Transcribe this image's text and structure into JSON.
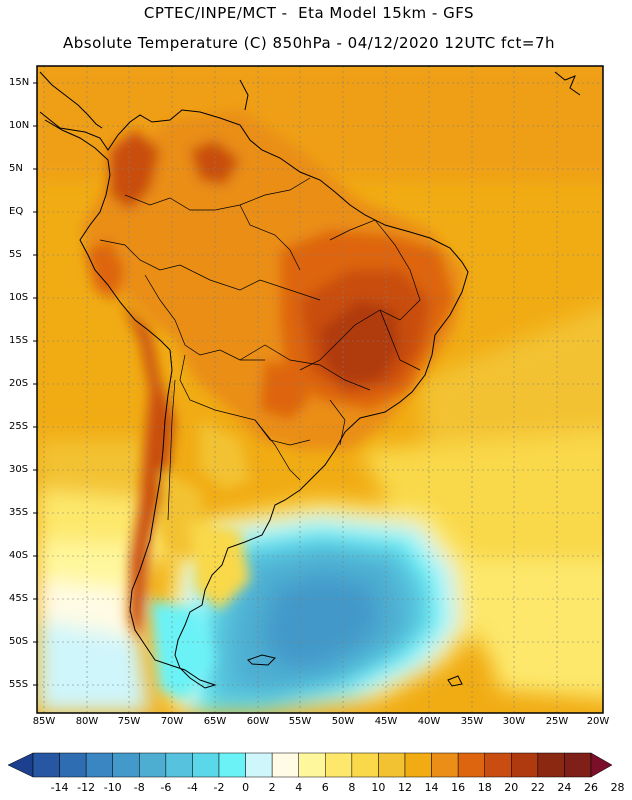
{
  "header": {
    "line1": "CPTEC/INPE/MCT -  Eta Model 15km - GFS",
    "line2": "Absolute Temperature (C) 850hPa - 04/12/2020 12UTC fct=7h"
  },
  "axes": {
    "lat_labels": [
      "15N",
      "10N",
      "5N",
      "EQ",
      "5S",
      "10S",
      "15S",
      "20S",
      "25S",
      "30S",
      "35S",
      "40S",
      "45S",
      "50S",
      "55S"
    ],
    "lon_labels": [
      "85W",
      "80W",
      "75W",
      "70W",
      "65W",
      "60W",
      "55W",
      "50W",
      "45W",
      "40W",
      "35W",
      "30W",
      "25W",
      "20W"
    ]
  },
  "colorbar": {
    "labels": [
      "-14",
      "-12",
      "-10",
      "-8",
      "-6",
      "-4",
      "-2",
      "0",
      "2",
      "4",
      "6",
      "8",
      "10",
      "12",
      "14",
      "16",
      "18",
      "20",
      "22",
      "24",
      "26",
      "28"
    ],
    "colors": [
      "#1c3f8e",
      "#2757a3",
      "#2f6db3",
      "#3a86c2",
      "#4399c9",
      "#4daed2",
      "#56c2dd",
      "#5ad8ea",
      "#6af2f6",
      "#cff6fb",
      "#fffbe4",
      "#fff79c",
      "#fde86c",
      "#f9d84a",
      "#f3c232",
      "#f1ac14",
      "#ea8e18",
      "#de6510",
      "#c94d10",
      "#b03a10",
      "#8b2812",
      "#7e2017",
      "#7b0f2a"
    ]
  },
  "map": {
    "field": "temperature_850hPa",
    "units": "C",
    "lon_range": [
      -86,
      -20
    ],
    "lat_range": [
      -58,
      16
    ]
  }
}
